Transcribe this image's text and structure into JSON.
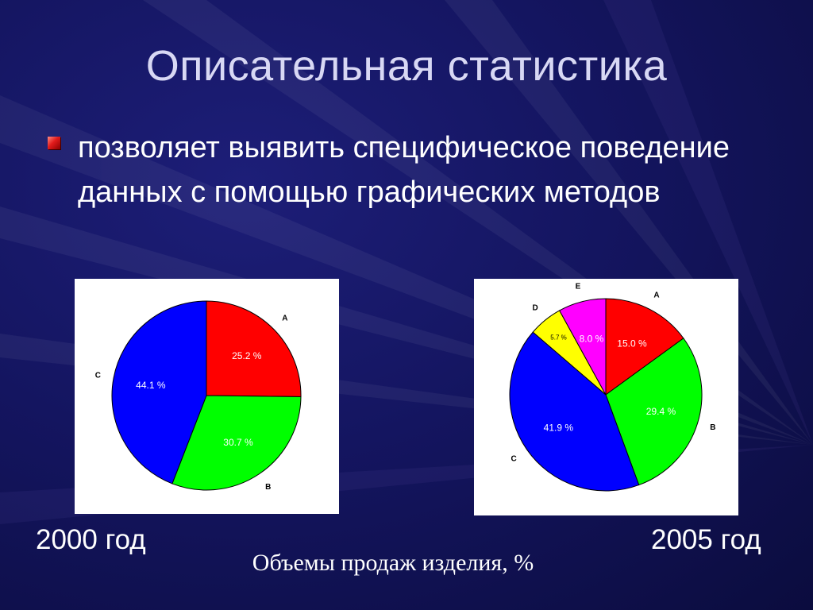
{
  "slide": {
    "title": "Описательная статистика",
    "bullet": "позволяет выявить специфическое поведение данных с помощью графических методов",
    "caption": "Объемы продаж изделия, %"
  },
  "chart_data": [
    {
      "type": "pie",
      "caption_below": "2000 год",
      "slices": [
        {
          "category": "A",
          "value": 25.2,
          "label": "25.2 %",
          "color": "#ff0000"
        },
        {
          "category": "B",
          "value": 30.7,
          "label": "30.7 %",
          "color": "#00ff00"
        },
        {
          "category": "C",
          "value": 44.1,
          "label": "44.1 %",
          "color": "#0000ff"
        }
      ]
    },
    {
      "type": "pie",
      "caption_below": "2005 год",
      "slices": [
        {
          "category": "A",
          "value": 15.0,
          "label": "15.0 %",
          "color": "#ff0000"
        },
        {
          "category": "B",
          "value": 29.4,
          "label": "29.4 %",
          "color": "#00ff00"
        },
        {
          "category": "C",
          "value": 41.9,
          "label": "41.9 %",
          "color": "#0000ff"
        },
        {
          "category": "D",
          "value": 5.7,
          "label": "5.7 %",
          "color": "#ffff00"
        },
        {
          "category": "E",
          "value": 8.0,
          "label": "8.0 %",
          "color": "#ff00ff"
        }
      ]
    }
  ]
}
